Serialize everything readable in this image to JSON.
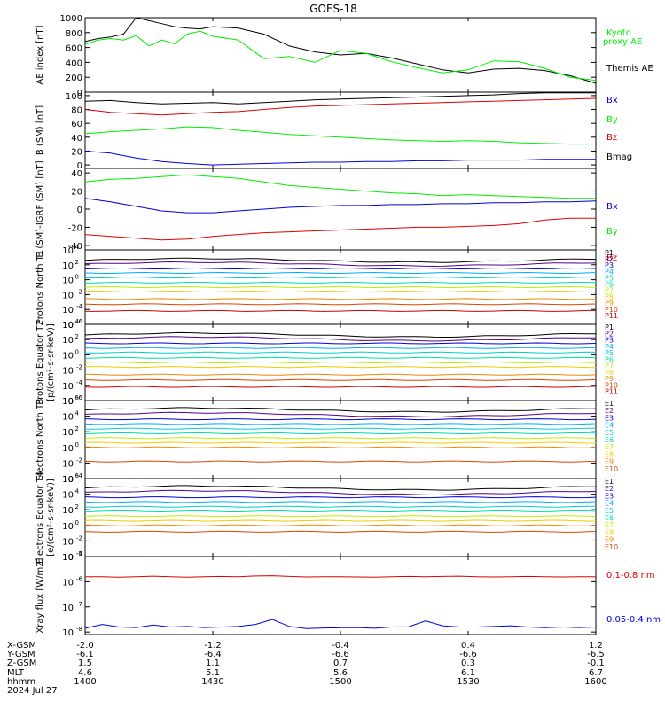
{
  "title": "GOES-18",
  "colors": {
    "black": "#000000",
    "green": "#00ee00",
    "red": "#dd0000",
    "blue": "#0000dd",
    "ch_p": [
      "#000000",
      "#55008b",
      "#0000dd",
      "#00aaff",
      "#00cccc",
      "#00ddaa",
      "#bbee00",
      "#eecc00",
      "#ee8800",
      "#dd4400",
      "#cc0000"
    ],
    "ch_e": [
      "#000000",
      "#55008b",
      "#0000dd",
      "#00aaff",
      "#00cccc",
      "#00ddaa",
      "#bbee00",
      "#eecc00",
      "#ee8800",
      "#dd4400",
      "#cc0000"
    ]
  },
  "chart_data": [
    {
      "id": "ae",
      "type": "line",
      "ylabel": "AE index [nT]",
      "ylim": [
        0,
        1000
      ],
      "yticks": [
        "0",
        "200",
        "400",
        "600",
        "800",
        "1000"
      ],
      "legend": [
        {
          "name": "Kyoto proxy AE",
          "color": "green"
        },
        {
          "name": "Themis AE",
          "color": "black"
        }
      ],
      "x": [
        0,
        3,
        6,
        9,
        12,
        15,
        18,
        21,
        24,
        27,
        30,
        36,
        42,
        48,
        54,
        60,
        66,
        72,
        78,
        84,
        90,
        96,
        102,
        108,
        114,
        120
      ],
      "series": [
        {
          "name": "Themis AE",
          "color": "black",
          "values": [
            680,
            720,
            740,
            780,
            1000,
            960,
            920,
            880,
            860,
            850,
            880,
            860,
            780,
            620,
            540,
            500,
            520,
            460,
            380,
            300,
            260,
            310,
            320,
            290,
            220,
            120
          ]
        },
        {
          "name": "Kyoto proxy AE",
          "color": "green",
          "values": [
            640,
            700,
            720,
            700,
            760,
            620,
            700,
            650,
            780,
            820,
            750,
            700,
            450,
            480,
            400,
            560,
            520,
            410,
            330,
            260,
            300,
            420,
            410,
            320,
            200,
            160
          ]
        }
      ]
    },
    {
      "id": "b",
      "type": "line",
      "ylabel": "B (SM) [nT]",
      "ylim": [
        -5,
        105
      ],
      "yticks": [
        "0",
        "20",
        "40",
        "60",
        "80",
        "100"
      ],
      "legend": [
        {
          "name": "Bx",
          "color": "blue"
        },
        {
          "name": "By",
          "color": "green"
        },
        {
          "name": "Bz",
          "color": "red"
        },
        {
          "name": "Bmag",
          "color": "black"
        }
      ],
      "x": [
        0,
        6,
        12,
        18,
        24,
        30,
        36,
        42,
        48,
        54,
        60,
        66,
        72,
        78,
        84,
        90,
        96,
        102,
        108,
        114,
        120
      ],
      "series": [
        {
          "name": "Bmag",
          "color": "black",
          "values": [
            92,
            93,
            90,
            88,
            89,
            90,
            88,
            90,
            92,
            94,
            95,
            96,
            97,
            98,
            99,
            100,
            101,
            103,
            104,
            104,
            104
          ]
        },
        {
          "name": "Bz",
          "color": "red",
          "values": [
            80,
            76,
            74,
            72,
            74,
            76,
            77,
            80,
            83,
            85,
            86,
            87,
            88,
            89,
            90,
            91,
            92,
            93,
            94,
            95,
            96
          ]
        },
        {
          "name": "By",
          "color": "green",
          "values": [
            45,
            48,
            50,
            52,
            55,
            54,
            50,
            47,
            44,
            42,
            40,
            38,
            36,
            35,
            34,
            35,
            34,
            32,
            31,
            30,
            30
          ]
        },
        {
          "name": "Bx",
          "color": "blue",
          "values": [
            20,
            17,
            10,
            5,
            2,
            0,
            1,
            2,
            3,
            4,
            4,
            5,
            5,
            6,
            6,
            7,
            7,
            7,
            8,
            8,
            8
          ]
        }
      ]
    },
    {
      "id": "dbirgf",
      "type": "line",
      "ylabel": "B (SM)-IGRF (SM) [nT]",
      "ylim": [
        -45,
        45
      ],
      "yticks": [
        "-40",
        "-20",
        "0",
        "20",
        "40"
      ],
      "legend": [
        {
          "name": "Bx",
          "color": "blue"
        },
        {
          "name": "By",
          "color": "green"
        },
        {
          "name": "Bz",
          "color": "red"
        }
      ],
      "x": [
        0,
        6,
        12,
        18,
        24,
        30,
        36,
        42,
        48,
        54,
        60,
        66,
        72,
        78,
        84,
        90,
        96,
        102,
        108,
        114,
        120
      ],
      "series": [
        {
          "name": "By",
          "color": "green",
          "values": [
            30,
            33,
            34,
            36,
            38,
            36,
            34,
            30,
            26,
            24,
            22,
            20,
            18,
            17,
            15,
            16,
            15,
            14,
            13,
            12,
            12
          ]
        },
        {
          "name": "Bx",
          "color": "blue",
          "values": [
            12,
            8,
            3,
            -2,
            -4,
            -4,
            -2,
            0,
            2,
            3,
            4,
            4,
            5,
            5,
            6,
            6,
            7,
            7,
            8,
            8,
            9
          ]
        },
        {
          "name": "Bz",
          "color": "red",
          "values": [
            -28,
            -30,
            -32,
            -34,
            -33,
            -30,
            -28,
            -26,
            -25,
            -24,
            -23,
            -22,
            -21,
            -20,
            -20,
            -19,
            -18,
            -16,
            -12,
            -10,
            -10
          ]
        }
      ]
    },
    {
      "id": "pn",
      "type": "line",
      "log": true,
      "ylabel": "Protons North T1",
      "ylim": [
        -6,
        4
      ],
      "yticks": [
        "10^4",
        "10^2",
        "10^0",
        "10^-2",
        "10^-4",
        "10^-6"
      ],
      "legend": [
        "P1",
        "P2",
        "P3",
        "P4",
        "P5",
        "P6",
        "P7",
        "P8",
        "P9",
        "P10",
        "P11"
      ],
      "levels": [
        2.6,
        2.1,
        1.5,
        0.9,
        0.3,
        -0.4,
        -1.0,
        -1.6,
        -2.6,
        -3.3,
        -4.2
      ]
    },
    {
      "id": "pe",
      "type": "line",
      "log": true,
      "ylabel": "Protons Equator T2",
      "yunit": "[p/(cm²-s-sr-keV)]",
      "ylim": [
        -6,
        4
      ],
      "yticks": [
        "10^4",
        "10^2",
        "10^0",
        "10^-2",
        "10^-4",
        "10^-6"
      ],
      "legend": [
        "P1",
        "P2",
        "P3",
        "P4",
        "P5",
        "P6",
        "P7",
        "P8",
        "P9",
        "P10",
        "P11"
      ],
      "levels": [
        2.6,
        2.1,
        1.5,
        0.9,
        0.3,
        -0.4,
        -1.0,
        -1.6,
        -2.6,
        -3.3,
        -4.2
      ]
    },
    {
      "id": "en",
      "type": "line",
      "log": true,
      "ylabel": "Electrons North T3",
      "ylim": [
        -4,
        6
      ],
      "yticks": [
        "10^6",
        "10^4",
        "10^2",
        "10^0",
        "10^-2",
        "10^-4"
      ],
      "legend": [
        "E1",
        "E2",
        "E3",
        "E4",
        "E5",
        "E6",
        "E7",
        "E8",
        "E9",
        "E10"
      ],
      "levels": [
        4.8,
        4.2,
        3.6,
        3.0,
        2.4,
        1.8,
        1.2,
        0.6,
        0.0,
        -1.8
      ]
    },
    {
      "id": "ee",
      "type": "line",
      "log": true,
      "ylabel": "Electrons Equator T4",
      "yunit": "[e/(cm²-s-sr-keV)]",
      "ylim": [
        -4,
        6
      ],
      "yticks": [
        "10^6",
        "10^4",
        "10^2",
        "10^0",
        "10^-2",
        "10^-4"
      ],
      "legend": [
        "E1",
        "E2",
        "E3",
        "E4",
        "E5",
        "E6",
        "E7",
        "E8",
        "E9",
        "E10"
      ],
      "levels": [
        4.8,
        4.2,
        3.6,
        3.0,
        2.4,
        1.8,
        1.2,
        0.6,
        0.0,
        -0.8
      ]
    },
    {
      "id": "xray",
      "type": "line",
      "log": true,
      "ylabel": "Xray flux [W/m2]",
      "ylim": [
        -8.1,
        -5
      ],
      "yticks": [
        "10^-5",
        "10^-6",
        "10^-7",
        "10^-8"
      ],
      "legend": [
        {
          "name": "0.1-0.8 nm",
          "color": "red"
        },
        {
          "name": "0.05-0.4 nm",
          "color": "blue"
        }
      ],
      "x": [
        0,
        4,
        8,
        12,
        16,
        20,
        24,
        28,
        32,
        36,
        40,
        44,
        48,
        52,
        56,
        60,
        64,
        68,
        72,
        76,
        80,
        84,
        88,
        92,
        96,
        100,
        104,
        108,
        112,
        116,
        120
      ],
      "series": [
        {
          "name": "0.1-0.8 nm",
          "color": "red",
          "values": [
            -5.8,
            -5.8,
            -5.82,
            -5.8,
            -5.78,
            -5.8,
            -5.82,
            -5.8,
            -5.79,
            -5.8,
            -5.77,
            -5.76,
            -5.79,
            -5.81,
            -5.8,
            -5.8,
            -5.81,
            -5.82,
            -5.8,
            -5.79,
            -5.8,
            -5.79,
            -5.78,
            -5.8,
            -5.81,
            -5.8,
            -5.79,
            -5.8,
            -5.81,
            -5.8,
            -5.8
          ]
        },
        {
          "name": "0.05-0.4 nm",
          "color": "blue",
          "values": [
            -7.85,
            -7.7,
            -7.8,
            -7.82,
            -7.72,
            -7.8,
            -7.78,
            -7.82,
            -7.8,
            -7.78,
            -7.7,
            -7.5,
            -7.78,
            -7.86,
            -7.84,
            -7.83,
            -7.82,
            -7.85,
            -7.8,
            -7.79,
            -7.56,
            -7.75,
            -7.8,
            -7.8,
            -7.78,
            -7.75,
            -7.8,
            -7.83,
            -7.8,
            -7.82,
            -7.8
          ]
        }
      ]
    }
  ],
  "xaxis": {
    "labels": [
      "X-GSM",
      "Y-GSM",
      "Z-GSM",
      "MLT",
      "hhmm",
      "2024 Jul 27"
    ],
    "ticks": [
      {
        "x": 0,
        "values": [
          "-2.0",
          "-6.1",
          "1.5",
          "4.6",
          "1400"
        ]
      },
      {
        "x": 30,
        "values": [
          "-1.2",
          "-6.4",
          "1.1",
          "5.1",
          "1430"
        ]
      },
      {
        "x": 60,
        "values": [
          "-0.4",
          "-6.6",
          "0.7",
          "5.6",
          "1500"
        ]
      },
      {
        "x": 90,
        "values": [
          "0.4",
          "-6.6",
          "0.3",
          "6.1",
          "1530"
        ]
      },
      {
        "x": 120,
        "values": [
          "1.2",
          "-6.5",
          "-0.1",
          "6.7",
          "1600"
        ]
      }
    ]
  }
}
